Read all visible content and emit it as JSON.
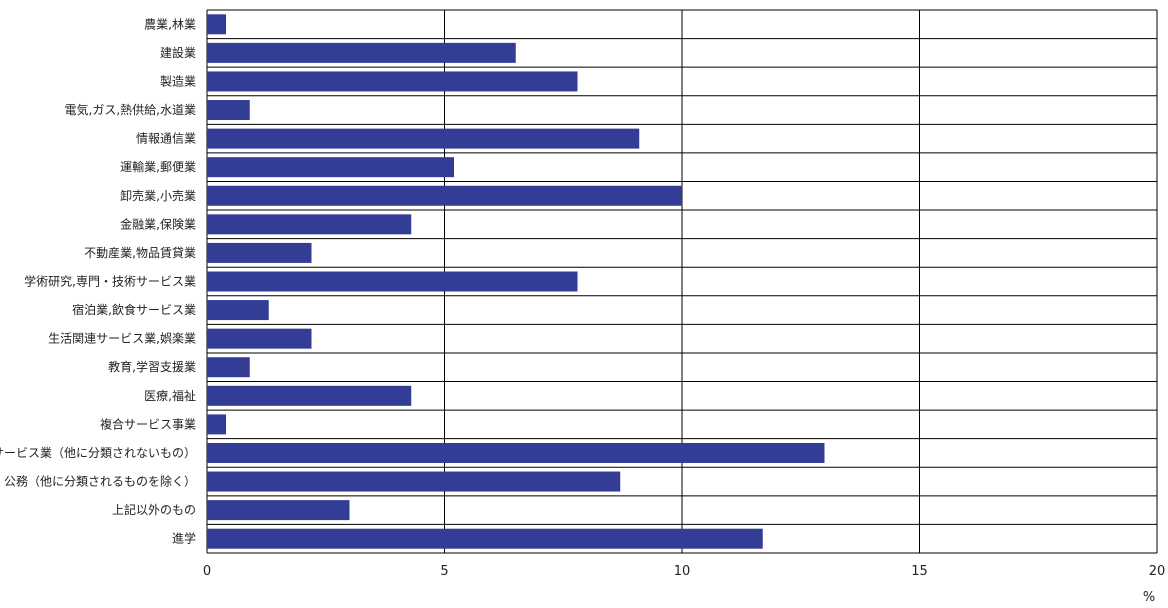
{
  "chart_data": {
    "type": "bar",
    "orientation": "horizontal",
    "categories": [
      "農業,林業",
      "建設業",
      "製造業",
      "電気,ガス,熱供給,水道業",
      "情報通信業",
      "運輸業,郵便業",
      "卸売業,小売業",
      "金融業,保険業",
      "不動産業,物品賃貸業",
      "学術研究,専門・技術サービス業",
      "宿泊業,飲食サービス業",
      "生活関連サービス業,娯楽業",
      "教育,学習支援業",
      "医療,福祉",
      "複合サービス事業",
      "サービス業（他に分類されないもの）",
      "公務（他に分類されるものを除く）",
      "上記以外のもの",
      "進学"
    ],
    "values": [
      0.4,
      6.5,
      7.8,
      0.9,
      9.1,
      5.2,
      10.0,
      4.3,
      2.2,
      7.8,
      1.3,
      2.2,
      0.9,
      4.3,
      0.4,
      13.0,
      8.7,
      3.0,
      11.7
    ],
    "xlim": [
      0,
      20
    ],
    "xticks": [
      "0",
      "5",
      "10",
      "15",
      "20"
    ],
    "unit": "%",
    "bar_color": "#333d96",
    "grid": true
  }
}
